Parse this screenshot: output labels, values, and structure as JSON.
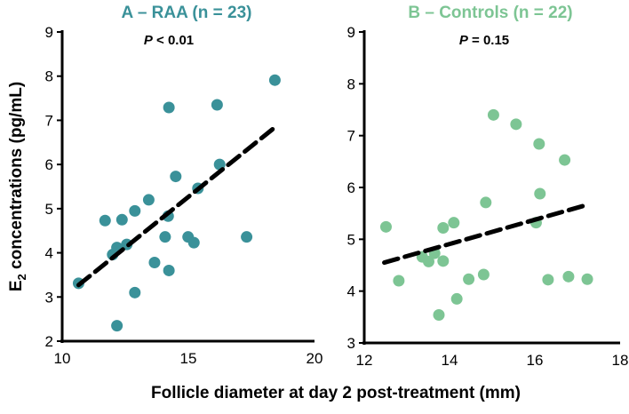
{
  "shared": {
    "ylabel_main": "E",
    "ylabel_sub": "2",
    "ylabel_rest": " concentrations (pg/mL)",
    "xlabel": "Follicle diameter at day 2 post-treatment (mm)"
  },
  "chart_data": [
    {
      "type": "scatter",
      "title": "A – RAA (n = 23)",
      "annotation_p": "P",
      "annotation_rest": " < 0.01",
      "color": "#3a9199",
      "xlim": [
        10,
        20
      ],
      "ylim": [
        2,
        9
      ],
      "xticks": [
        "10",
        "15",
        "20"
      ],
      "yticks": [
        "2",
        "3",
        "4",
        "5",
        "6",
        "7",
        "8",
        "9"
      ],
      "x": [
        10.65,
        11.7,
        12.37,
        12.0,
        12.17,
        12.56,
        12.88,
        12.88,
        12.17,
        13.43,
        13.66,
        14.08,
        14.2,
        14.23,
        14.23,
        14.5,
        14.99,
        15.22,
        15.38,
        16.14,
        16.24,
        17.31,
        18.43
      ],
      "y": [
        3.31,
        4.73,
        4.75,
        3.96,
        4.12,
        4.19,
        4.95,
        3.1,
        2.35,
        5.2,
        3.78,
        4.36,
        4.83,
        7.29,
        3.6,
        5.73,
        4.36,
        4.23,
        5.46,
        7.35,
        6.0,
        4.36,
        7.91
      ],
      "trend": {
        "x": [
          10.65,
          18.45
        ],
        "y": [
          3.27,
          6.85
        ]
      }
    },
    {
      "type": "scatter",
      "title": "B – Controls (n = 22)",
      "annotation_p": "P",
      "annotation_rest": " = 0.15",
      "color": "#7dc594",
      "xlim": [
        12,
        18
      ],
      "ylim": [
        3,
        9
      ],
      "xticks": [
        "12",
        "14",
        "16",
        "18"
      ],
      "yticks": [
        "3",
        "4",
        "5",
        "6",
        "7",
        "8",
        "9"
      ],
      "x": [
        12.51,
        12.81,
        13.36,
        13.51,
        13.65,
        13.85,
        13.85,
        13.75,
        14.1,
        14.17,
        14.45,
        14.8,
        14.85,
        15.03,
        15.56,
        16.03,
        16.1,
        16.12,
        16.31,
        16.7,
        16.79,
        17.23
      ],
      "y": [
        5.24,
        4.2,
        4.66,
        4.57,
        4.73,
        5.22,
        4.58,
        3.54,
        5.32,
        3.85,
        4.23,
        4.32,
        5.71,
        7.4,
        7.22,
        5.32,
        6.84,
        5.88,
        4.22,
        6.53,
        4.28,
        4.23
      ],
      "trend": {
        "x": [
          12.47,
          17.25
        ],
        "y": [
          4.55,
          5.67
        ]
      }
    }
  ]
}
